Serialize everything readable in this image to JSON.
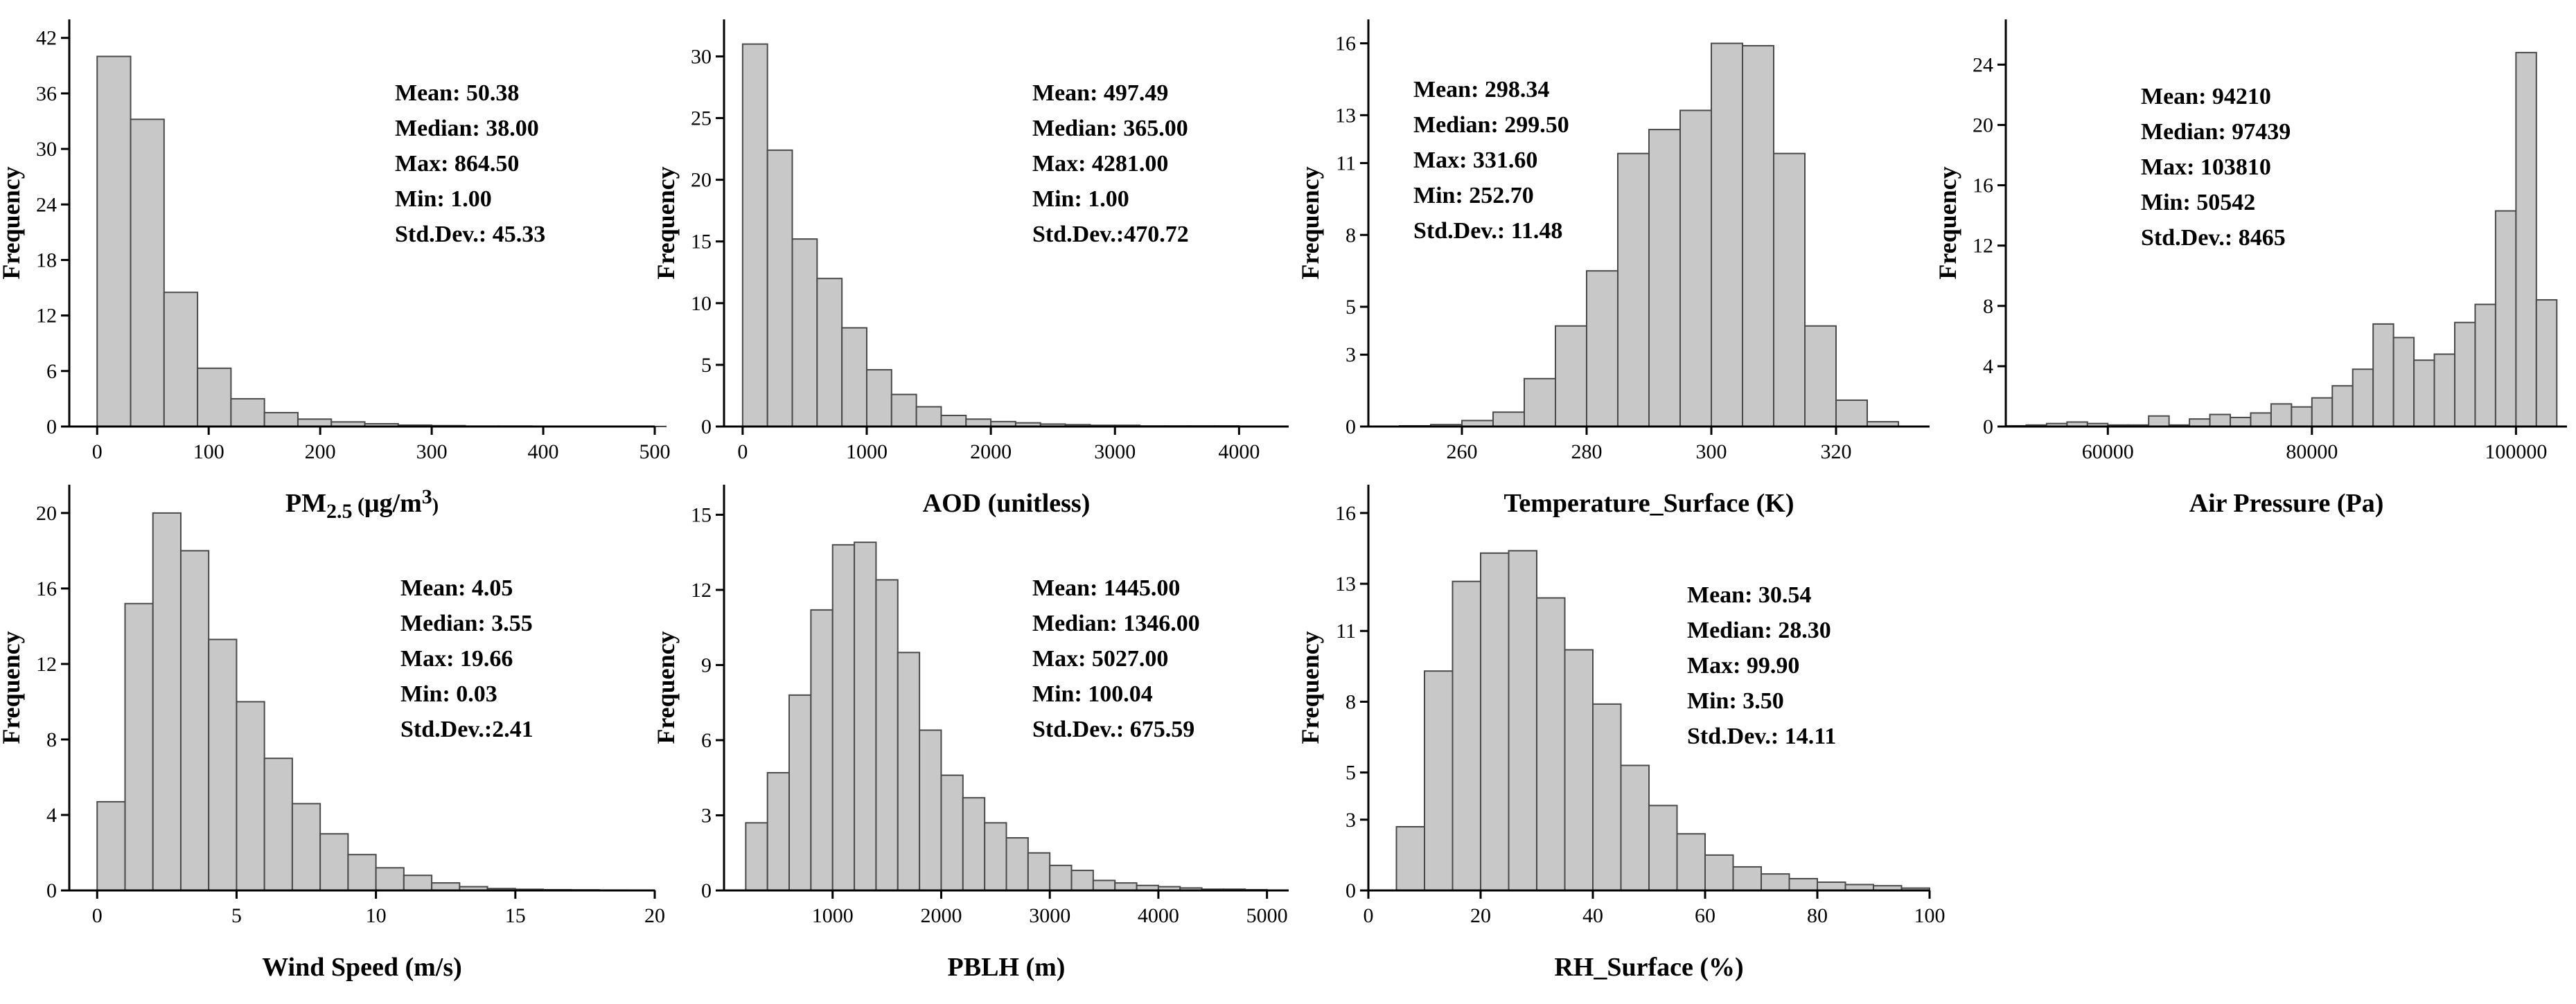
{
  "chart_data": [
    {
      "type": "bar",
      "title": "",
      "xlabel": "PM2.5 (μg/m3)",
      "xlabel_parts": {
        "main": "PM",
        "sub": "2.5",
        "unit_open": " (",
        "unit": "μg/m",
        "sup": "3",
        "unit_close": ")"
      },
      "ylabel": "Frequency",
      "bin_edges": [
        0,
        30,
        60,
        90,
        120,
        150,
        180,
        210,
        240,
        270,
        300,
        330,
        360,
        390,
        420,
        450,
        480,
        510
      ],
      "values": [
        40,
        33.2,
        14.5,
        6.3,
        3,
        1.5,
        0.8,
        0.5,
        0.3,
        0.15,
        0.1,
        0.05,
        0.05,
        0.03,
        0.02,
        0.02,
        0.01
      ],
      "xlim": [
        -25,
        500
      ],
      "ylim": [
        0,
        44
      ],
      "xticks": [
        0,
        100,
        200,
        300,
        400,
        500
      ],
      "xtick_labels": [
        "0",
        "100",
        "200",
        "300",
        "400",
        "500"
      ],
      "yticks": [
        0,
        6,
        12,
        18,
        24,
        30,
        36,
        42
      ],
      "ytick_labels": [
        "0",
        "6",
        "12",
        "18",
        "24",
        "30",
        "36",
        "42"
      ],
      "stats": [
        "Mean: 50.38",
        "Median: 38.00",
        "Max: 864.50",
        "Min: 1.00",
        "Std.Dev.: 45.33"
      ]
    },
    {
      "type": "bar",
      "title": "",
      "xlabel": "AOD (unitless)",
      "ylabel": "Frequency",
      "bin_edges": [
        0,
        200,
        400,
        600,
        800,
        1000,
        1200,
        1400,
        1600,
        1800,
        2000,
        2200,
        2400,
        2600,
        2800,
        3000,
        3200,
        3400,
        3600,
        3800,
        4000
      ],
      "values": [
        31,
        22.4,
        15.2,
        12,
        8,
        4.6,
        2.6,
        1.6,
        0.9,
        0.6,
        0.4,
        0.3,
        0.2,
        0.15,
        0.1,
        0.1,
        0.05,
        0.05,
        0.05,
        0.05
      ],
      "xlim": [
        -150,
        4400
      ],
      "ylim": [
        0,
        33
      ],
      "xticks": [
        0,
        1000,
        2000,
        3000,
        4000
      ],
      "xtick_labels": [
        "0",
        "1000",
        "2000",
        "3000",
        "4000"
      ],
      "yticks": [
        0,
        5,
        10,
        15,
        20,
        25,
        30
      ],
      "ytick_labels": [
        "0",
        "5",
        "10",
        "15",
        "20",
        "25",
        "30"
      ],
      "stats": [
        "Mean: 497.49",
        "Median: 365.00",
        "Max: 4281.00",
        "Min: 1.00",
        "Std.Dev.:470.72"
      ]
    },
    {
      "type": "bar",
      "title": "",
      "xlabel": "Temperature_Surface (K)",
      "ylabel": "Frequency",
      "bin_edges": [
        250,
        255,
        260,
        265,
        270,
        275,
        280,
        285,
        290,
        295,
        300,
        305,
        310,
        315,
        320,
        325,
        330
      ],
      "values": [
        0.03,
        0.08,
        0.25,
        0.6,
        2,
        4.2,
        6.5,
        11.4,
        12.4,
        13.2,
        16,
        15.9,
        11.4,
        4.2,
        1.1,
        0.2
      ],
      "xlim": [
        245,
        335
      ],
      "ylim": [
        0,
        17
      ],
      "xticks": [
        260,
        280,
        300,
        320
      ],
      "xtick_labels": [
        "260",
        "280",
        "300",
        "320"
      ],
      "yticks": [
        0,
        3,
        5,
        8,
        11,
        13,
        16
      ],
      "ytick_labels": [
        "0",
        "3",
        "5",
        "8",
        "11",
        "13",
        "16"
      ],
      "stats": [
        "Mean: 298.34",
        "Median: 299.50",
        "Max: 331.60",
        "Min: 252.70",
        "Std.Dev.: 11.48"
      ]
    },
    {
      "type": "bar",
      "title": "",
      "xlabel": "Air Pressure (Pa)",
      "ylabel": "Frequency",
      "bin_edges": [
        50000,
        52000,
        54000,
        56000,
        58000,
        60000,
        62000,
        64000,
        66000,
        68000,
        70000,
        72000,
        74000,
        76000,
        78000,
        80000,
        82000,
        84000,
        86000,
        88000,
        90000,
        92000,
        94000,
        96000,
        98000,
        100000,
        102000,
        104000
      ],
      "values": [
        0.05,
        0.1,
        0.2,
        0.3,
        0.2,
        0.1,
        0.1,
        0.7,
        0.1,
        0.5,
        0.8,
        0.6,
        0.9,
        1.5,
        1.3,
        1.9,
        2.7,
        3.8,
        6.8,
        5.9,
        4.4,
        4.8,
        6.9,
        8.1,
        14.3,
        24.8,
        8.4
      ],
      "xlim": [
        50000,
        105000
      ],
      "ylim": [
        0,
        27
      ],
      "xticks": [
        60000,
        80000,
        100000
      ],
      "xtick_labels": [
        "60000",
        "80000",
        "100000"
      ],
      "yticks": [
        0,
        4,
        8,
        12,
        16,
        20,
        24
      ],
      "ytick_labels": [
        "0",
        "4",
        "8",
        "12",
        "16",
        "20",
        "24"
      ],
      "stats": [
        "Mean: 94210",
        "Median: 97439",
        "Max: 103810",
        "Min: 50542",
        "Std.Dev.: 8465"
      ]
    },
    {
      "type": "bar",
      "title": "",
      "xlabel": "Wind Speed (m/s)",
      "ylabel": "Frequency",
      "bin_edges": [
        0,
        1,
        2,
        3,
        4,
        5,
        6,
        7,
        8,
        9,
        10,
        11,
        12,
        13,
        14,
        15,
        16,
        17,
        18,
        19,
        20
      ],
      "values": [
        4.7,
        15.2,
        20,
        18,
        13.3,
        10,
        7,
        4.6,
        3,
        1.9,
        1.2,
        0.8,
        0.4,
        0.2,
        0.1,
        0.06,
        0.04,
        0.03,
        0.02,
        0.01
      ],
      "xlim": [
        -1,
        20
      ],
      "ylim": [
        0,
        21.5
      ],
      "xticks": [
        0,
        5,
        10,
        15,
        20
      ],
      "xtick_labels": [
        "0",
        "5",
        "10",
        "15",
        "20"
      ],
      "yticks": [
        0,
        4,
        8,
        12,
        16,
        20
      ],
      "ytick_labels": [
        "0",
        "4",
        "8",
        "12",
        "16",
        "20"
      ],
      "stats": [
        "Mean: 4.05",
        "Median: 3.55",
        "Max: 19.66",
        "Min: 0.03",
        "Std.Dev.:2.41"
      ]
    },
    {
      "type": "bar",
      "title": "",
      "xlabel": "PBLH (m)",
      "ylabel": "Frequency",
      "bin_edges": [
        200,
        400,
        600,
        800,
        1000,
        1200,
        1400,
        1600,
        1800,
        2000,
        2200,
        2400,
        2600,
        2800,
        3000,
        3200,
        3400,
        3600,
        3800,
        4000,
        4200,
        4400,
        4600,
        4800,
        5000
      ],
      "values": [
        2.7,
        4.7,
        7.8,
        11.2,
        13.8,
        13.9,
        12.4,
        9.5,
        6.4,
        4.6,
        3.7,
        2.7,
        2.1,
        1.5,
        1,
        0.8,
        0.4,
        0.3,
        0.2,
        0.15,
        0.1,
        0.05,
        0.05,
        0.03
      ],
      "xlim": [
        0,
        5200
      ],
      "ylim": [
        0,
        16.2
      ],
      "xticks": [
        1000,
        2000,
        3000,
        4000,
        5000
      ],
      "xtick_labels": [
        "1000",
        "2000",
        "3000",
        "4000",
        "5000"
      ],
      "yticks": [
        0,
        3,
        6,
        9,
        12,
        15
      ],
      "ytick_labels": [
        "0",
        "3",
        "6",
        "9",
        "12",
        "15"
      ],
      "stats": [
        "Mean: 1445.00",
        "Median: 1346.00",
        "Max: 5027.00",
        "Min: 100.04",
        "Std.Dev.: 675.59"
      ]
    },
    {
      "type": "bar",
      "title": "",
      "xlabel": "RH_Surface (%)",
      "ylabel": "Frequency",
      "bin_edges": [
        5,
        10,
        15,
        20,
        25,
        30,
        35,
        40,
        45,
        50,
        55,
        60,
        65,
        70,
        75,
        80,
        85,
        90,
        95,
        100
      ],
      "values": [
        2.7,
        9.3,
        13.1,
        14.3,
        14.4,
        12.4,
        10.2,
        7.9,
        5.3,
        3.6,
        2.4,
        1.5,
        1,
        0.7,
        0.5,
        0.35,
        0.25,
        0.2,
        0.1
      ],
      "xlim": [
        0,
        100
      ],
      "ylim": [
        0,
        17.2
      ],
      "xticks": [
        0,
        20,
        40,
        60,
        80,
        100
      ],
      "xtick_labels": [
        "0",
        "20",
        "40",
        "60",
        "80",
        "100"
      ],
      "yticks": [
        0,
        3,
        5,
        8,
        11,
        13,
        16
      ],
      "ytick_labels": [
        "0",
        "3",
        "5",
        "8",
        "11",
        "13",
        "16"
      ],
      "stats": [
        "Mean: 30.54",
        "Median: 28.30",
        "Max: 99.90",
        "Min: 3.50",
        "Std.Dev.: 14.11"
      ]
    }
  ]
}
